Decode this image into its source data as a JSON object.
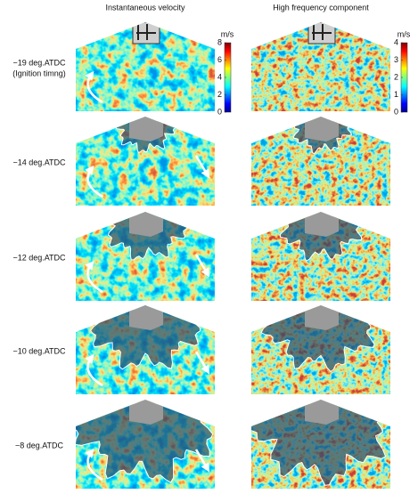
{
  "columns": [
    "Instantaneous velocity",
    "High frequency component"
  ],
  "rows": [
    {
      "label": "−19 deg.ATDC",
      "note": "(Ignition timng)"
    },
    {
      "label": "−14 deg.ATDC"
    },
    {
      "label": "−12 deg.ATDC"
    },
    {
      "label": "−10 deg.ATDC"
    },
    {
      "label": "−8 deg.ATDC"
    }
  ],
  "colorbars": [
    {
      "unit": "m/s",
      "ticks": [
        0,
        2,
        4,
        6,
        8
      ]
    },
    {
      "unit": "m/s",
      "ticks": [
        0,
        1,
        2,
        3,
        4
      ]
    }
  ]
}
